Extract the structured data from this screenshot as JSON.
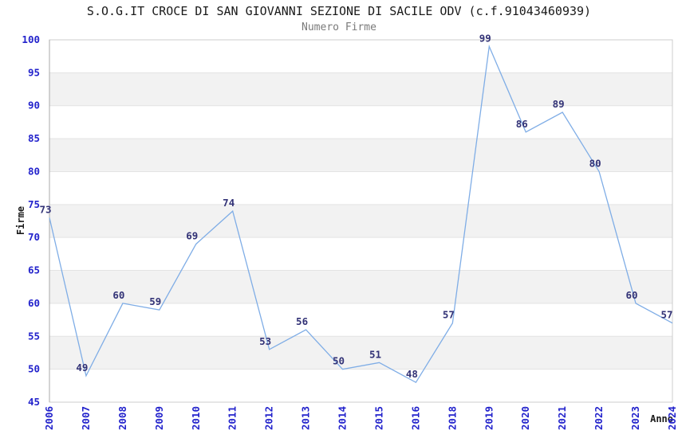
{
  "header": {
    "title": "S.O.G.IT CROCE DI SAN GIOVANNI SEZIONE DI SACILE ODV (c.f.91043460939)",
    "subtitle": "Numero Firme"
  },
  "chart_data": {
    "type": "line",
    "title": "S.O.G.IT CROCE DI SAN GIOVANNI SEZIONE DI SACILE ODV (c.f.91043460939)",
    "subtitle": "Numero Firme",
    "xlabel": "Anno",
    "ylabel": "Firme",
    "x": [
      "2006",
      "2007",
      "2008",
      "2009",
      "2010",
      "2011",
      "2012",
      "2013",
      "2014",
      "2015",
      "2016",
      "2018",
      "2019",
      "2020",
      "2021",
      "2022",
      "2023",
      "2024"
    ],
    "series": [
      {
        "name": "Numero Firme",
        "values": [
          73,
          49,
          60,
          59,
          69,
          74,
          53,
          56,
          50,
          51,
          48,
          57,
          99,
          86,
          89,
          80,
          60,
          57
        ]
      }
    ],
    "point_labels_shown": true,
    "ylim": [
      45,
      100
    ],
    "yticks": [
      45,
      50,
      55,
      60,
      65,
      70,
      75,
      80,
      85,
      90,
      95,
      100
    ],
    "grid": true,
    "legend": false,
    "band_fill": "alternating horizontal stripes between gridlines"
  },
  "colors": {
    "line": "#7fade6",
    "point_label": "#333377",
    "tick_label": "#2323cc",
    "band": "#f2f2f2",
    "gridline": "#e3e3e3",
    "plot_border": "#cccccc",
    "axis_line": "#a8a8a8",
    "title_text": "#1a1a1a",
    "subtitle_text": "#7a7a7a",
    "background": "#ffffff"
  }
}
